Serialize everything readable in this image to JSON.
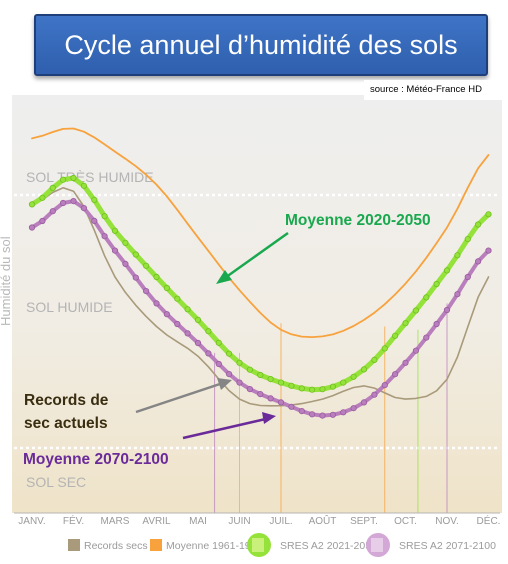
{
  "title": "Cycle annuel d’humidité des sols",
  "source": "source : Météo-France HD",
  "y_axis_label": "Humidité du sol",
  "zones": [
    "SOL TRÈS HUMIDE",
    "SOL HUMIDE",
    "SOL SEC"
  ],
  "annotations": {
    "moyenne_2020": "Moyenne 2020-2050",
    "records_line1": "Records de",
    "records_line2": "sec actuels",
    "moyenne_2070": "Moyenne 2070-2100"
  },
  "colors": {
    "records": "#a89a7a",
    "moyenne_1961": "#f7a23c",
    "sres_2021": "#95e23a",
    "sres_2071": "#b97fbd",
    "annot_green": "#1aa84f",
    "annot_purple": "#6a2a9a",
    "annot_dark": "#3a2e10"
  },
  "chart_data": {
    "type": "line",
    "categories": [
      "JANV.",
      "FÉV.",
      "MARS",
      "AVRIL",
      "MAI",
      "JUIN",
      "JUIL.",
      "AOÛT",
      "SEPT.",
      "OCT.",
      "NOV.",
      "DÉC."
    ],
    "ylabel": "Humidité du sol",
    "ylim": [
      0,
      100
    ],
    "series": [
      {
        "name": "Records secs",
        "values": [
          82,
          86,
          60,
          45,
          36,
          23,
          21,
          23,
          27,
          23,
          29,
          60
        ]
      },
      {
        "name": "Moyenne 1961-1990",
        "values": [
          102,
          105,
          98,
          88,
          72,
          56,
          44,
          42,
          47,
          58,
          75,
          97
        ]
      },
      {
        "name": "SRES A2 2021-2050",
        "values": [
          82,
          90,
          74,
          60,
          47,
          34,
          28,
          26,
          32,
          46,
          62,
          79
        ]
      },
      {
        "name": "SRES A2 2071-2100",
        "values": [
          75,
          83,
          68,
          52,
          40,
          28,
          22,
          18,
          22,
          34,
          50,
          68
        ]
      }
    ],
    "legend_position": "bottom"
  }
}
